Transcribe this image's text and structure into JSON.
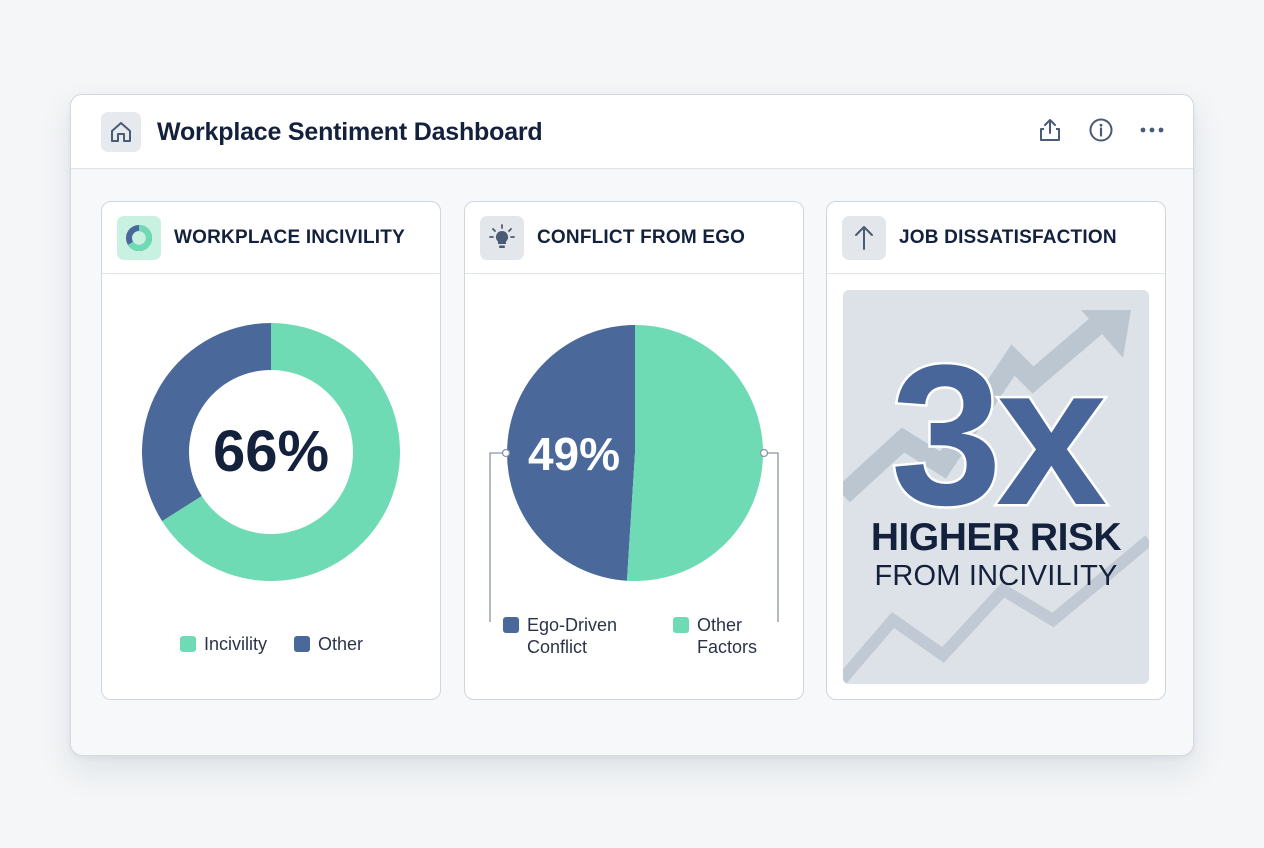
{
  "window": {
    "title": "Workplace Sentiment Dashboard",
    "icons": {
      "app": "home-icon",
      "share": "share-icon",
      "info": "info-icon",
      "more": "more-icon"
    }
  },
  "colors": {
    "green": "#6fdbb5",
    "blue": "#4b689b",
    "navy": "#14213d",
    "panel_bg": "#dde2e8"
  },
  "cards": {
    "incivility": {
      "title": "WORKPLACE INCIVILITY",
      "icon": "donut-chart-icon",
      "value_label": "66%",
      "legend": [
        "Incivility",
        "Other"
      ]
    },
    "ego": {
      "title": "CONFLICT FROM EGO",
      "icon": "lightbulb-icon",
      "value_label": "49%",
      "legend": {
        "first_line1": "Ego-Driven",
        "first_line2": "Conflict",
        "second_line1": "Other",
        "second_line2": "Factors"
      }
    },
    "dissatisfaction": {
      "title": "JOB DISSATISFACTION",
      "icon": "arrow-up-icon",
      "big_value": "3x",
      "line1": "HIGHER RISK",
      "line2": "FROM INCIVILITY"
    }
  },
  "chart_data": [
    {
      "type": "pie",
      "title": "WORKPLACE INCIVILITY",
      "variant": "donut",
      "categories": [
        "Incivility",
        "Other"
      ],
      "values": [
        66,
        34
      ],
      "center_label": "66%"
    },
    {
      "type": "pie",
      "title": "CONFLICT FROM EGO",
      "categories": [
        "Ego-Driven Conflict",
        "Other Factors"
      ],
      "values": [
        49,
        51
      ],
      "slice_label": "49%"
    }
  ]
}
